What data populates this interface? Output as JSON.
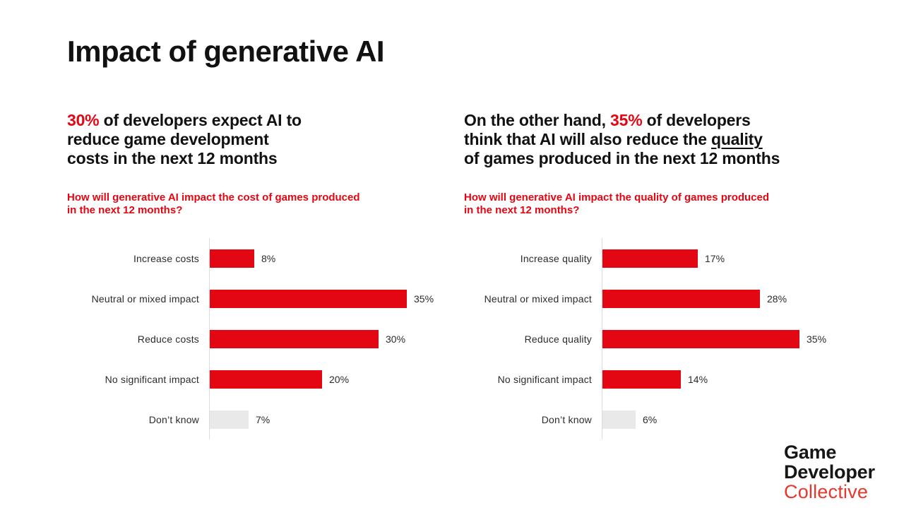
{
  "title": "Impact of generative AI",
  "colors": {
    "accent": "#e30613",
    "bar_red": "#e30613",
    "bar_neutral": "#e9e9e9",
    "axis": "#dcdcdc",
    "text_dark": "#111111",
    "label": "#2b2b2b",
    "logo_black": "#161616",
    "logo_red": "#e8372e"
  },
  "left": {
    "headline_lines": [
      [
        {
          "t": "30%",
          "red": true
        },
        {
          "t": " of developers expect AI to"
        }
      ],
      [
        {
          "t": "reduce game development"
        }
      ],
      [
        {
          "t": "costs in the next 12 months"
        }
      ]
    ],
    "question_lines": [
      "How will generative AI impact the cost of games produced",
      "in the next 12 months?"
    ]
  },
  "right": {
    "headline_lines": [
      [
        {
          "t": "On the other hand, "
        },
        {
          "t": "35%",
          "red": true
        },
        {
          "t": " of developers"
        }
      ],
      [
        {
          "t": "think that AI will also reduce the "
        },
        {
          "t": "quality",
          "underline": true
        }
      ],
      [
        {
          "t": "of games produced in the next 12 months"
        }
      ]
    ],
    "question_lines": [
      "How will generative AI impact the quality of games produced",
      "in the next 12 months?"
    ]
  },
  "chart_data": [
    {
      "type": "bar",
      "orientation": "horizontal",
      "title": "How will generative AI impact the cost of games produced in the next 12 months?",
      "categories": [
        "Increase costs",
        "Neutral or mixed impact",
        "Reduce costs",
        "No significant impact",
        "Don’t know"
      ],
      "values": [
        8,
        35,
        30,
        20,
        7
      ],
      "value_labels": [
        "8%",
        "35%",
        "30%",
        "20%",
        "7%"
      ],
      "bar_colors": [
        "#e30613",
        "#e30613",
        "#e30613",
        "#e30613",
        "#e9e9e9"
      ],
      "xlim": [
        0,
        35
      ],
      "grid": false,
      "legend": false
    },
    {
      "type": "bar",
      "orientation": "horizontal",
      "title": "How will generative AI impact the quality of games produced in the next 12 months?",
      "categories": [
        "Increase quality",
        "Neutral or mixed impact",
        "Reduce quality",
        "No significant impact",
        "Don’t know"
      ],
      "values": [
        17,
        28,
        35,
        14,
        6
      ],
      "value_labels": [
        "17%",
        "28%",
        "35%",
        "14%",
        "6%"
      ],
      "bar_colors": [
        "#e30613",
        "#e30613",
        "#e30613",
        "#e30613",
        "#e9e9e9"
      ],
      "xlim": [
        0,
        35
      ],
      "grid": false,
      "legend": false
    }
  ],
  "logo": {
    "line1": "Game",
    "line2": "Developer",
    "line3": "Collective"
  }
}
